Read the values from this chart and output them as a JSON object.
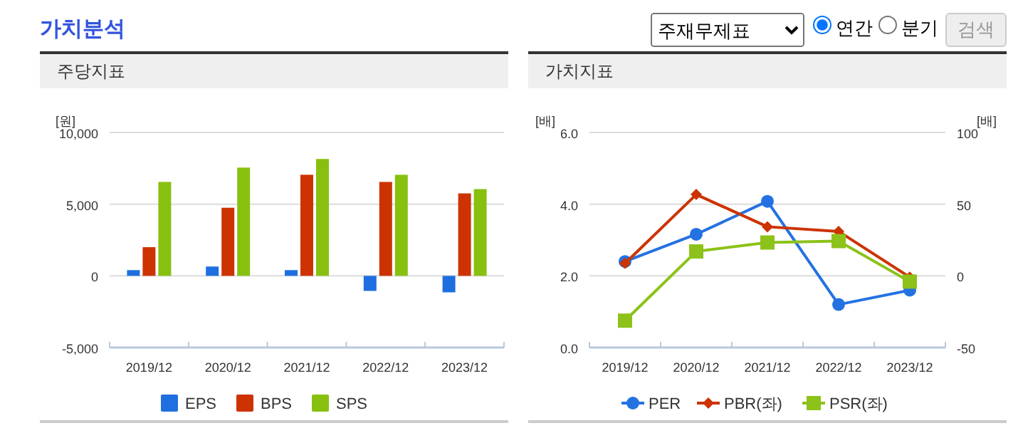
{
  "chart_data": [
    {
      "type": "other",
      "title": "가치분석",
      "annotations": [
        "주재무제표",
        "연간",
        "분기",
        "검색"
      ]
    },
    {
      "type": "bar",
      "title": "주당지표",
      "ylabel": "[원]",
      "categories": [
        "2019/12",
        "2020/12",
        "2021/12",
        "2022/12",
        "2023/12"
      ],
      "ylim": [
        -5000,
        10000
      ],
      "yticks": [
        {
          "value": -5000,
          "label": "-5,000"
        },
        0,
        {
          "value": 5000,
          "label": "5,000"
        },
        {
          "value": 10000,
          "label": "10,000"
        }
      ],
      "grid": "y",
      "legend": "bottom",
      "series": [
        {
          "name": "EPS",
          "color": "#1f6fe0",
          "values": [
            400,
            650,
            400,
            -1050,
            -1150
          ]
        },
        {
          "name": "BPS",
          "color": "#cc3300",
          "values": [
            2000,
            4750,
            7050,
            6550,
            5750
          ]
        },
        {
          "name": "SPS",
          "color": "#88c010",
          "values": [
            6550,
            7550,
            8150,
            7050,
            6050
          ]
        }
      ]
    },
    {
      "type": "line",
      "title": "가치지표",
      "ylabel": "[배]",
      "y2label": "[배]",
      "categories": [
        "2019/12",
        "2020/12",
        "2021/12",
        "2022/12",
        "2023/12"
      ],
      "ylim": [
        0,
        6
      ],
      "yticks": [
        {
          "value": 0,
          "label": "0.0"
        },
        {
          "value": 2,
          "label": "2.0"
        },
        {
          "value": 4,
          "label": "4.0"
        },
        {
          "value": 6,
          "label": "6.0"
        }
      ],
      "y2lim": [
        -50,
        100
      ],
      "y2ticks": [
        -50,
        0,
        50,
        100
      ],
      "grid": "y",
      "legend": "bottom",
      "line_style": "solid",
      "series": [
        {
          "name": "PER",
          "color": "#2472e2",
          "axis": "y2",
          "marker": "circle",
          "values": [
            10,
            29,
            52,
            -20,
            -10
          ]
        },
        {
          "name": "PBR(좌)",
          "color": "#cc3300",
          "marker": "diamond",
          "values": [
            2.35,
            4.27,
            3.37,
            3.24,
            1.96
          ]
        },
        {
          "name": "PSR(좌)",
          "color": "#8cc21a",
          "marker": "square",
          "values": [
            0.75,
            2.68,
            2.93,
            2.97,
            1.84
          ]
        }
      ]
    }
  ]
}
